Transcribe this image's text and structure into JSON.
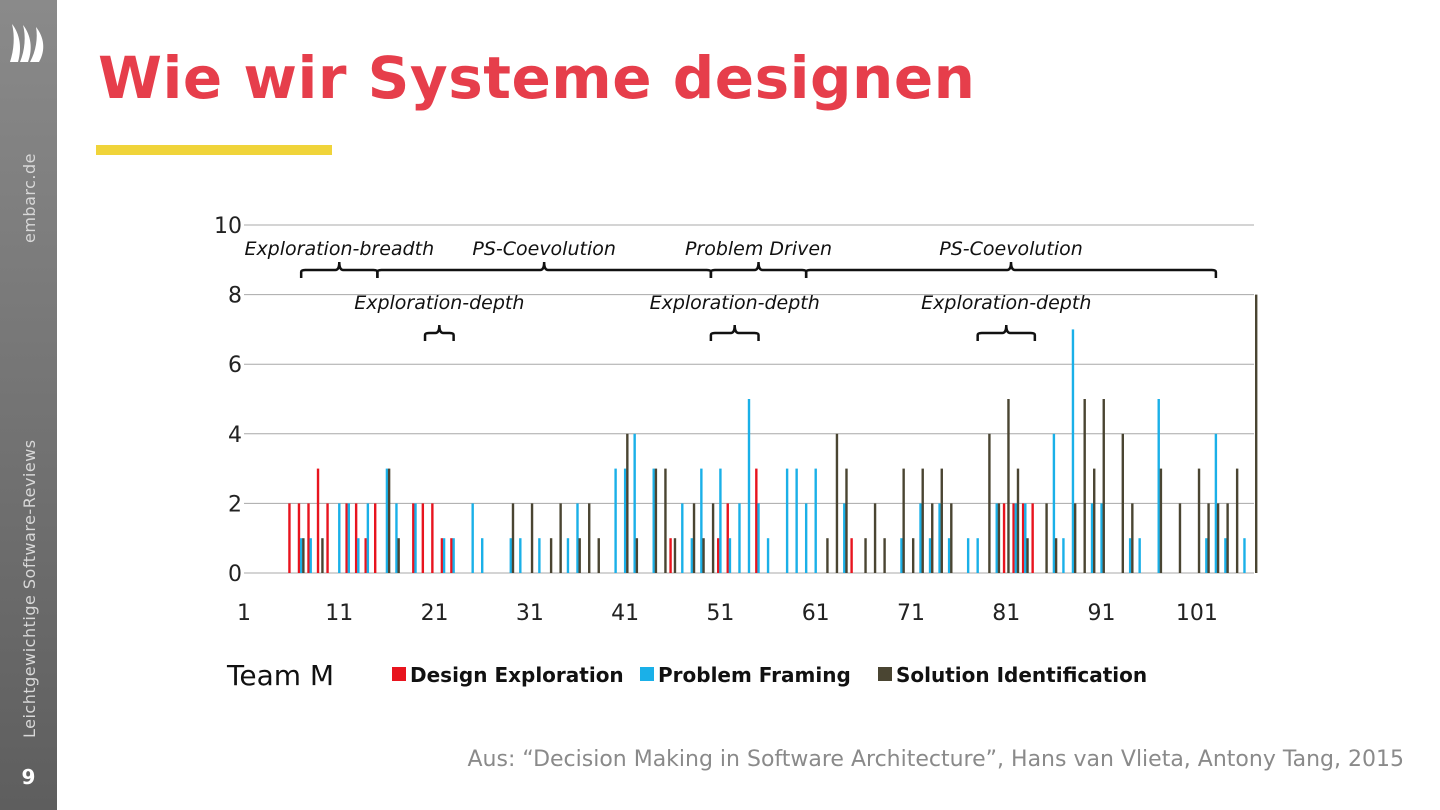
{
  "sidebar": {
    "site": "embarc.de",
    "topic": "Leichtgewichtige Software-Reviews",
    "page_number": "9"
  },
  "slide": {
    "title": "Wie wir Systeme designen",
    "source": "Aus: “Decision Making in Software Architecture”, Hans van Vlieta, Antony Tang, 2015"
  },
  "colors": {
    "title": "#e63e4b",
    "accent_bar": "#f0d43a",
    "design_exploration": "#e8141e",
    "problem_framing": "#1ab0e8",
    "solution_identification": "#4a4532"
  },
  "chart_data": {
    "type": "bar",
    "team_label": "Team M",
    "x_range": [
      1,
      103
    ],
    "ylim": [
      0,
      10
    ],
    "y_ticks": [
      0,
      2,
      4,
      6,
      8,
      10
    ],
    "x_ticks": [
      1,
      11,
      21,
      31,
      41,
      51,
      61,
      71,
      81,
      91,
      101
    ],
    "grid": true,
    "legend_position": "bottom",
    "series": [
      {
        "name": "Design Exploration",
        "points": [
          [
            6,
            2
          ],
          [
            7,
            2
          ],
          [
            8,
            2
          ],
          [
            9,
            3
          ],
          [
            10,
            2
          ],
          [
            12,
            2
          ],
          [
            13,
            2
          ],
          [
            14,
            1
          ],
          [
            15,
            2
          ],
          [
            19,
            2
          ],
          [
            20,
            2
          ],
          [
            21,
            2
          ],
          [
            22,
            1
          ],
          [
            23,
            1
          ],
          [
            46,
            1
          ],
          [
            51,
            1
          ],
          [
            52,
            2
          ],
          [
            55,
            3
          ],
          [
            65,
            1
          ],
          [
            81,
            2
          ],
          [
            82,
            2
          ],
          [
            83,
            2
          ],
          [
            84,
            2
          ]
        ]
      },
      {
        "name": "Problem Framing",
        "points": [
          [
            7,
            1
          ],
          [
            8,
            1
          ],
          [
            11,
            2
          ],
          [
            12,
            2
          ],
          [
            13,
            1
          ],
          [
            14,
            2
          ],
          [
            16,
            3
          ],
          [
            17,
            2
          ],
          [
            19,
            2
          ],
          [
            22,
            1
          ],
          [
            23,
            1
          ],
          [
            25,
            2
          ],
          [
            26,
            1
          ],
          [
            29,
            1
          ],
          [
            30,
            1
          ],
          [
            32,
            1
          ],
          [
            35,
            1
          ],
          [
            36,
            2
          ],
          [
            40,
            3
          ],
          [
            41,
            3
          ],
          [
            42,
            4
          ],
          [
            44,
            3
          ],
          [
            47,
            2
          ],
          [
            48,
            1
          ],
          [
            49,
            3
          ],
          [
            51,
            3
          ],
          [
            52,
            1
          ],
          [
            53,
            2
          ],
          [
            54,
            5
          ],
          [
            55,
            2
          ],
          [
            56,
            1
          ],
          [
            58,
            3
          ],
          [
            59,
            3
          ],
          [
            60,
            2
          ],
          [
            61,
            3
          ],
          [
            64,
            2
          ],
          [
            70,
            1
          ],
          [
            72,
            2
          ],
          [
            73,
            1
          ],
          [
            74,
            2
          ],
          [
            75,
            1
          ],
          [
            77,
            1
          ],
          [
            78,
            1
          ],
          [
            80,
            2
          ],
          [
            82,
            2
          ],
          [
            83,
            2
          ],
          [
            86,
            4
          ],
          [
            87,
            1
          ],
          [
            88,
            7
          ],
          [
            90,
            2
          ],
          [
            91,
            2
          ],
          [
            94,
            1
          ],
          [
            95,
            1
          ],
          [
            97,
            5
          ],
          [
            102,
            1
          ],
          [
            103,
            4
          ],
          [
            104,
            1
          ],
          [
            106,
            1
          ]
        ]
      },
      {
        "name": "Solution Identification",
        "points": [
          [
            7,
            1
          ],
          [
            9,
            1
          ],
          [
            16,
            3
          ],
          [
            17,
            1
          ],
          [
            29,
            2
          ],
          [
            31,
            2
          ],
          [
            33,
            1
          ],
          [
            34,
            2
          ],
          [
            36,
            1
          ],
          [
            37,
            2
          ],
          [
            38,
            1
          ],
          [
            41,
            4
          ],
          [
            42,
            1
          ],
          [
            44,
            3
          ],
          [
            45,
            3
          ],
          [
            46,
            1
          ],
          [
            48,
            2
          ],
          [
            49,
            1
          ],
          [
            50,
            2
          ],
          [
            62,
            1
          ],
          [
            63,
            4
          ],
          [
            64,
            3
          ],
          [
            66,
            1
          ],
          [
            67,
            2
          ],
          [
            68,
            1
          ],
          [
            70,
            3
          ],
          [
            71,
            1
          ],
          [
            72,
            3
          ],
          [
            73,
            2
          ],
          [
            74,
            3
          ],
          [
            75,
            2
          ],
          [
            79,
            4
          ],
          [
            80,
            2
          ],
          [
            81,
            5
          ],
          [
            82,
            3
          ],
          [
            83,
            1
          ],
          [
            85,
            2
          ],
          [
            86,
            1
          ],
          [
            88,
            2
          ],
          [
            89,
            5
          ],
          [
            90,
            3
          ],
          [
            91,
            5
          ],
          [
            93,
            4
          ],
          [
            94,
            2
          ],
          [
            97,
            3
          ],
          [
            99,
            2
          ],
          [
            101,
            3
          ],
          [
            102,
            2
          ],
          [
            103,
            2
          ],
          [
            104,
            2
          ],
          [
            105,
            3
          ],
          [
            107,
            8
          ]
        ]
      }
    ],
    "annotations": {
      "phases": [
        {
          "label": "Exploration-breadth",
          "start": 7,
          "end": 15
        },
        {
          "label": "PS-Coevolution",
          "start": 15,
          "end": 50
        },
        {
          "label": "Problem Driven",
          "start": 50,
          "end": 60
        },
        {
          "label": "PS-Coevolution",
          "start": 60,
          "end": 103
        }
      ],
      "sub_phases": [
        {
          "label": "Exploration-depth",
          "start": 20,
          "end": 23
        },
        {
          "label": "Exploration-depth",
          "start": 50,
          "end": 55
        },
        {
          "label": "Exploration-depth",
          "start": 78,
          "end": 84
        }
      ]
    }
  }
}
